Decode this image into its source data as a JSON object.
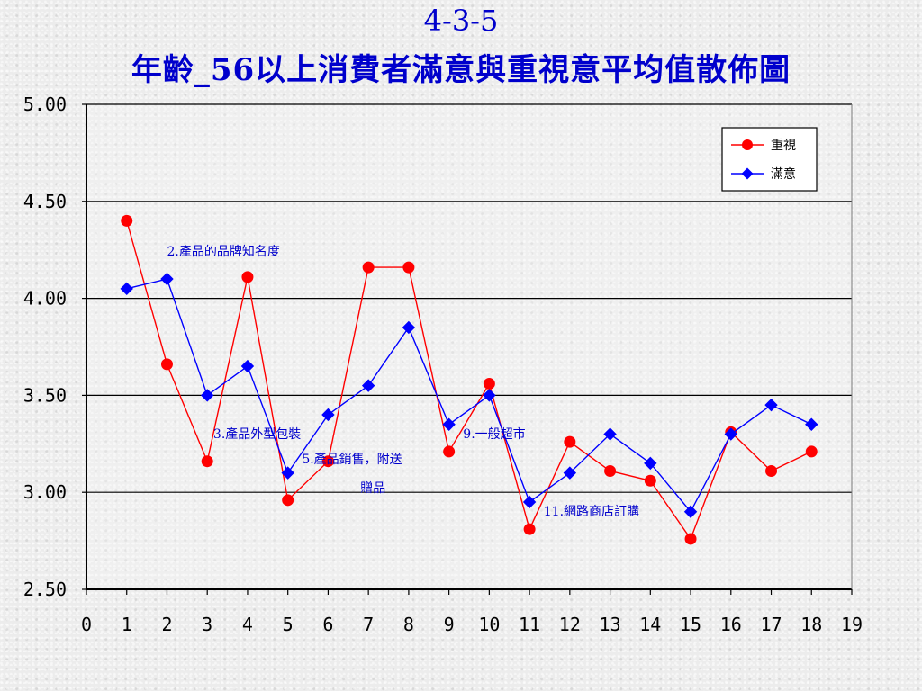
{
  "slide": {
    "title_line1": "4-3-5",
    "title_line2": "年齡_56以上消費者滿意與重視意平均值散佈圖"
  },
  "chart_data": {
    "type": "line",
    "x": [
      1,
      2,
      3,
      4,
      5,
      6,
      7,
      8,
      9,
      10,
      11,
      12,
      13,
      14,
      15,
      16,
      17,
      18
    ],
    "xlim": [
      0,
      19
    ],
    "x_ticks": [
      "0",
      "1",
      "2",
      "3",
      "4",
      "5",
      "6",
      "7",
      "8",
      "9",
      "10",
      "11",
      "12",
      "13",
      "14",
      "15",
      "16",
      "17",
      "18",
      "19"
    ],
    "ylim": [
      2.5,
      5.0
    ],
    "y_ticks": [
      "2.50",
      "3.00",
      "3.50",
      "4.00",
      "4.50",
      "5.00"
    ],
    "grid": "horizontal",
    "legend_position": "top-right",
    "series": [
      {
        "name": "重視",
        "color": "#ff0000",
        "marker": "circle",
        "values": [
          4.4,
          3.66,
          3.16,
          4.11,
          2.96,
          3.16,
          4.16,
          4.16,
          3.21,
          3.56,
          2.81,
          3.26,
          3.11,
          3.06,
          2.76,
          3.31,
          3.11,
          3.21
        ]
      },
      {
        "name": "滿意",
        "color": "#0000ff",
        "marker": "diamond",
        "values": [
          4.05,
          4.1,
          3.5,
          3.65,
          3.1,
          3.4,
          3.55,
          3.85,
          3.35,
          3.5,
          2.95,
          3.1,
          3.3,
          3.15,
          2.9,
          3.3,
          3.45,
          3.35
        ]
      }
    ],
    "annotations": [
      {
        "id": "a2",
        "text": "2.產品的品牌知名度",
        "x": 2.0,
        "y": 4.22
      },
      {
        "id": "a3",
        "text": "3.產品外型包裝",
        "x": 3.15,
        "y": 3.28
      },
      {
        "id": "a5a",
        "text": "5.產品銷售，附送",
        "x": 5.35,
        "y": 3.15
      },
      {
        "id": "a5b",
        "text": "贈品",
        "x": 6.8,
        "y": 3.0
      },
      {
        "id": "a9",
        "text": "9.一般超市",
        "x": 9.35,
        "y": 3.28
      },
      {
        "id": "a11",
        "text": "11.網路商店訂購",
        "x": 11.35,
        "y": 2.88
      }
    ]
  }
}
